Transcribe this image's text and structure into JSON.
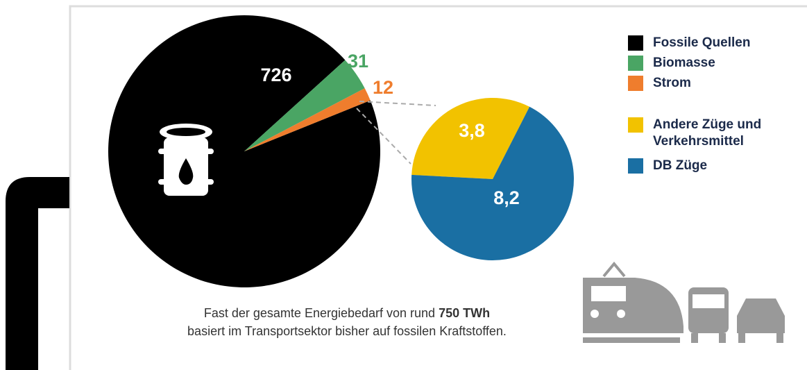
{
  "chart_data": [
    {
      "type": "pie",
      "categories": [
        "Fossile Quellen",
        "Biomasse",
        "Strom"
      ],
      "values": [
        726,
        31,
        12
      ],
      "colors": [
        "#000000",
        "#4aa564",
        "#ef7d2d"
      ]
    },
    {
      "type": "pie",
      "categories": [
        "Andere Züge und Verkehrsmittel",
        "DB Züge"
      ],
      "values": [
        3.8,
        8.2
      ],
      "value_labels": [
        "3,8",
        "8,2"
      ],
      "colors": [
        "#f2c200",
        "#1a6fa3"
      ]
    }
  ],
  "caption": {
    "before": "Fast der gesamte Energiebedarf von rund",
    "bold": "750 TWh",
    "after": "basiert im Transportsektor bisher auf fossilen Kraftstoffen."
  }
}
